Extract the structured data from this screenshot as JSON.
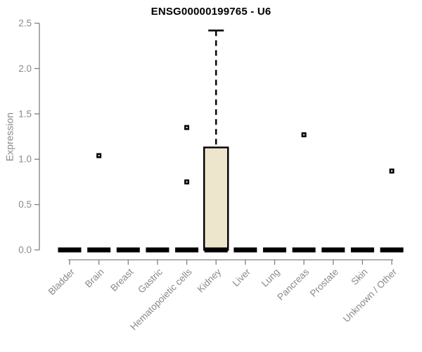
{
  "header": {
    "title": "ENSG00000199765 - U6"
  },
  "chart_data": {
    "type": "boxplot",
    "title": "ENSG00000199765 - U6",
    "xlabel": "",
    "ylabel": "Expression",
    "ylim": [
      0,
      2.5
    ],
    "yticks": [
      "0.0",
      "0.5",
      "1.0",
      "1.5",
      "2.0",
      "2.5"
    ],
    "grid": false,
    "legend": false,
    "categories": [
      "Bladder",
      "Brain",
      "Breast",
      "Gastric",
      "Hematopoietic cells",
      "Kidney",
      "Liver",
      "Lung",
      "Pancreas",
      "Prostate",
      "Skin",
      "Unknown / Other"
    ],
    "boxes": [
      {
        "category": "Bladder",
        "q1": 0,
        "median": 0,
        "q3": 0,
        "whisker_low": 0,
        "whisker_high": 0,
        "outliers": []
      },
      {
        "category": "Brain",
        "q1": 0,
        "median": 0,
        "q3": 0,
        "whisker_low": 0,
        "whisker_high": 0,
        "outliers": [
          1.04
        ]
      },
      {
        "category": "Breast",
        "q1": 0,
        "median": 0,
        "q3": 0,
        "whisker_low": 0,
        "whisker_high": 0,
        "outliers": []
      },
      {
        "category": "Gastric",
        "q1": 0,
        "median": 0,
        "q3": 0,
        "whisker_low": 0,
        "whisker_high": 0,
        "outliers": []
      },
      {
        "category": "Hematopoietic cells",
        "q1": 0,
        "median": 0,
        "q3": 0,
        "whisker_low": 0,
        "whisker_high": 0,
        "outliers": [
          1.35,
          0.75
        ]
      },
      {
        "category": "Kidney",
        "q1": 0,
        "median": 0,
        "q3": 1.13,
        "whisker_low": 0,
        "whisker_high": 2.42,
        "outliers": []
      },
      {
        "category": "Liver",
        "q1": 0,
        "median": 0,
        "q3": 0,
        "whisker_low": 0,
        "whisker_high": 0,
        "outliers": []
      },
      {
        "category": "Lung",
        "q1": 0,
        "median": 0,
        "q3": 0,
        "whisker_low": 0,
        "whisker_high": 0,
        "outliers": []
      },
      {
        "category": "Pancreas",
        "q1": 0,
        "median": 0,
        "q3": 0,
        "whisker_low": 0,
        "whisker_high": 0,
        "outliers": [
          1.27
        ]
      },
      {
        "category": "Prostate",
        "q1": 0,
        "median": 0,
        "q3": 0,
        "whisker_low": 0,
        "whisker_high": 0,
        "outliers": []
      },
      {
        "category": "Skin",
        "q1": 0,
        "median": 0,
        "q3": 0,
        "whisker_low": 0,
        "whisker_high": 0,
        "outliers": []
      },
      {
        "category": "Unknown / Other",
        "q1": 0,
        "median": 0,
        "q3": 0,
        "whisker_low": 0,
        "whisker_high": 0,
        "outliers": [
          0.87
        ]
      }
    ],
    "colors": {
      "box_fill": "#EDE6CC",
      "box_stroke": "#000000",
      "median_color": "#000000",
      "outlier_color": "#000000",
      "outlier_center": "#FFFFFF",
      "axis_color": "#808080",
      "tick_text_color": "#8A8A8A",
      "title_color": "#000000"
    }
  }
}
